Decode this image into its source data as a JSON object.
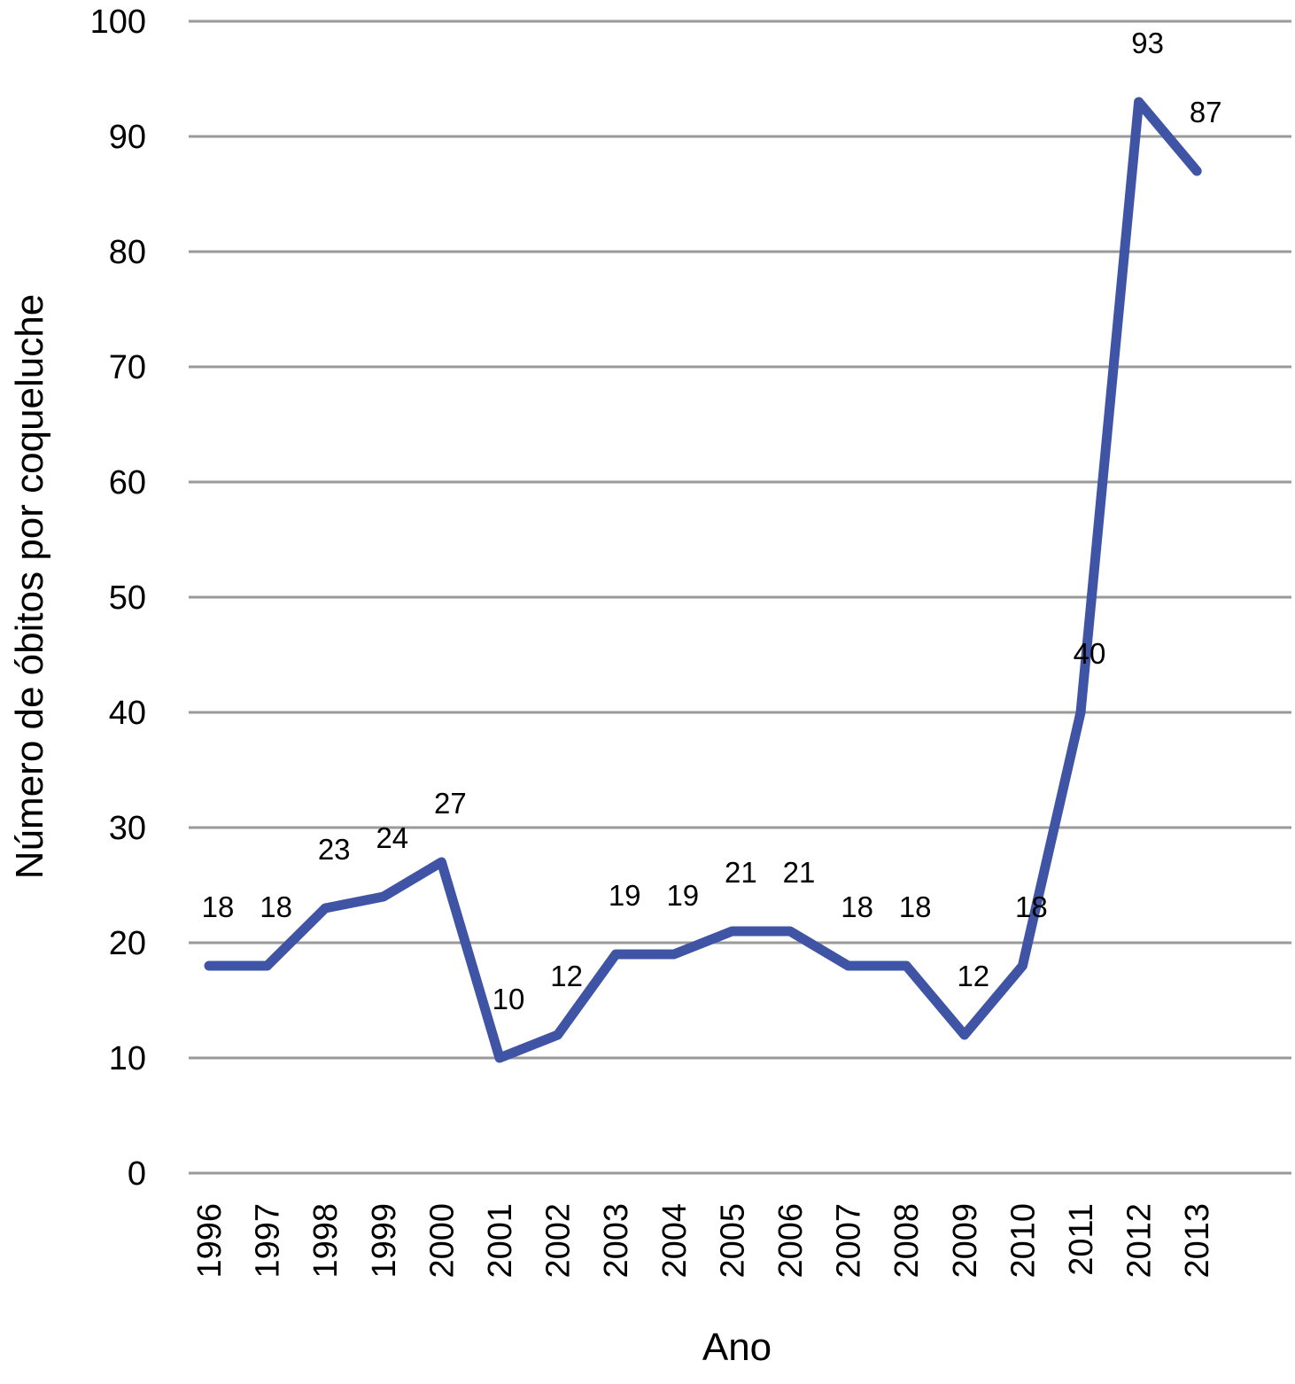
{
  "chart_data": {
    "type": "line",
    "title": "",
    "xlabel": "Ano",
    "ylabel": "Número de óbitos por coqueluche",
    "ylim": [
      0,
      100
    ],
    "yticks": [
      "0",
      "10",
      "20",
      "30",
      "40",
      "50",
      "60",
      "70",
      "80",
      "90",
      "100"
    ],
    "grid": true,
    "categories": [
      "1996",
      "1997",
      "1998",
      "1999",
      "2000",
      "2001",
      "2002",
      "2003",
      "2004",
      "2005",
      "2006",
      "2007",
      "2008",
      "2009",
      "2010",
      "2011",
      "2012",
      "2013"
    ],
    "series": [
      {
        "values": [
          18,
          18,
          23,
          24,
          27,
          10,
          12,
          19,
          19,
          21,
          21,
          18,
          18,
          12,
          18,
          40,
          93,
          87
        ],
        "labels": [
          "18",
          "18",
          "23",
          "24",
          "27",
          "10",
          "12",
          "19",
          "19",
          "21",
          "21",
          "18",
          "18",
          "12",
          "18",
          "40",
          "93",
          "87"
        ]
      }
    ],
    "colors": {
      "line": "#4054a6",
      "grid": "#9a9a9a"
    }
  }
}
